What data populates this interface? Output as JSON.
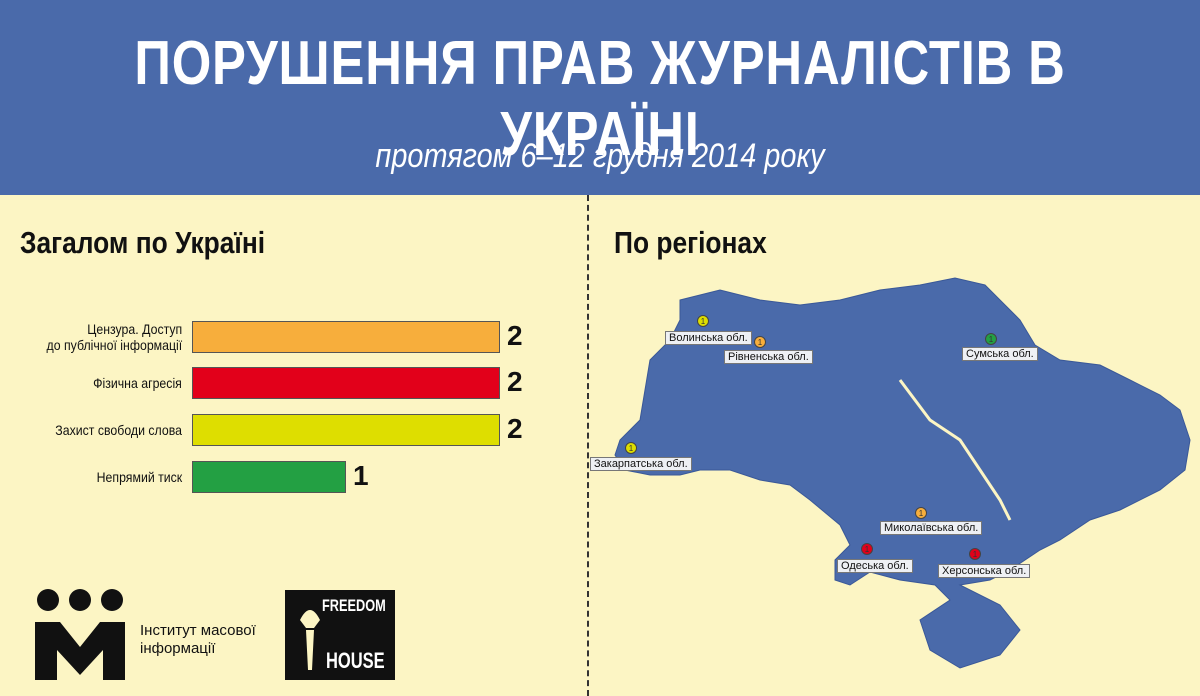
{
  "header": {
    "title": "ПОРУШЕННЯ ПРАВ ЖУРНАЛІСТІВ В УКРАЇНІ",
    "subtitle": "протягом 6–12 грудня 2014 року"
  },
  "chart_data": {
    "type": "bar",
    "orientation": "horizontal",
    "title": "Загалом по Україні",
    "categories": [
      "Цензура. Доступ\nдо публічної інформації",
      "Фізична агресія",
      "Захист свободи слова",
      "Непрямий тиск"
    ],
    "values": [
      2,
      2,
      2,
      1
    ],
    "colors": [
      "#f7ae3c",
      "#e2001a",
      "#dede00",
      "#23a043"
    ],
    "xlim": [
      0,
      2
    ]
  },
  "map": {
    "title": "По регіонах",
    "markers": [
      {
        "label": "Волинська обл.",
        "count": 1,
        "color": "#dede00"
      },
      {
        "label": "Рівненська обл.",
        "count": 1,
        "color": "#f7ae3c"
      },
      {
        "label": "Сумська обл.",
        "count": 1,
        "color": "#23a043"
      },
      {
        "label": "Закарпатська обл.",
        "count": 1,
        "color": "#dede00"
      },
      {
        "label": "Миколаївська обл.",
        "count": 1,
        "color": "#f7ae3c"
      },
      {
        "label": "Одеська обл.",
        "count": 1,
        "color": "#e2001a"
      },
      {
        "label": "Херсонська обл.",
        "count": 1,
        "color": "#e2001a"
      }
    ]
  },
  "logos": {
    "imi": "Інститут масової\nінформації",
    "freedom_house_top": "FREEDOM",
    "freedom_house_bottom": "HOUSE"
  }
}
